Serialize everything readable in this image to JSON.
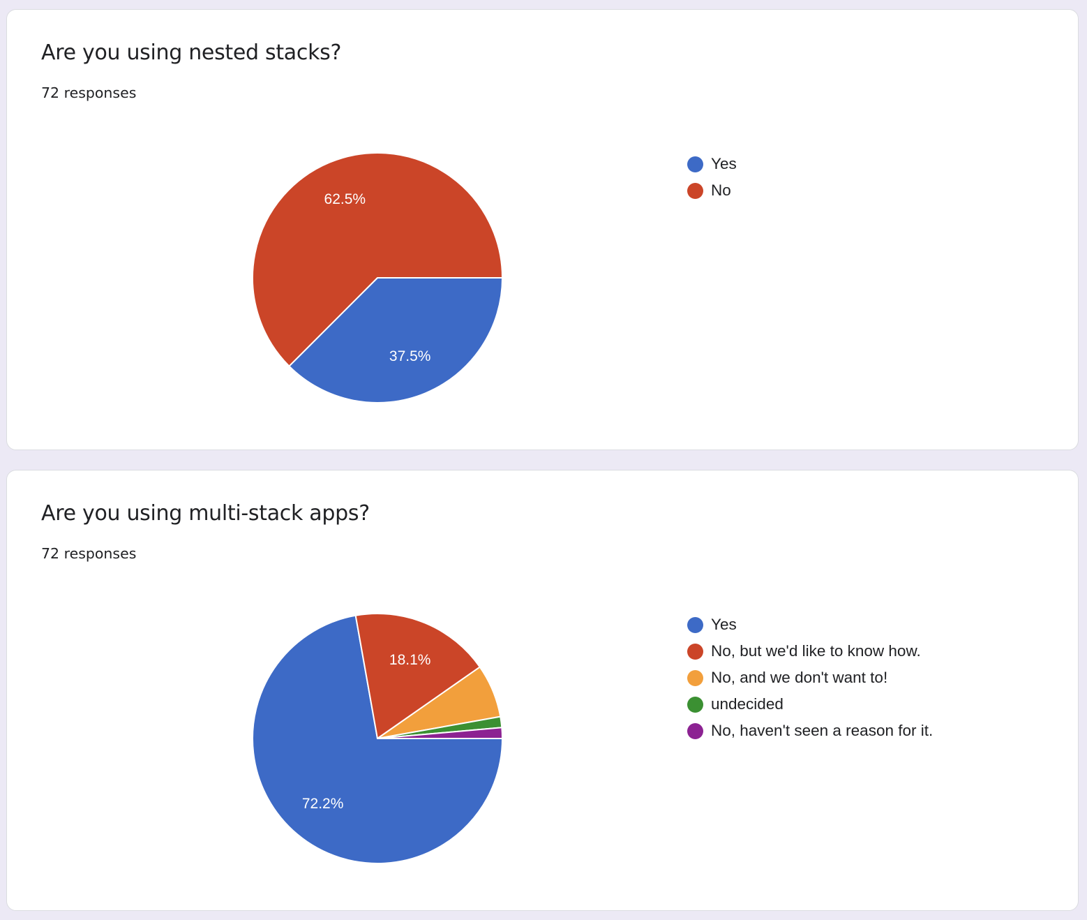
{
  "colors": {
    "blue": "#3d6ac6",
    "red": "#cb4528",
    "orange": "#f29f3c",
    "green": "#3b9032",
    "purple": "#8c2292",
    "background": "#ece9f5",
    "card": "#ffffff"
  },
  "cards": [
    {
      "title": "Are you using nested stacks?",
      "responses": "72 responses"
    },
    {
      "title": "Are you using multi-stack apps?",
      "responses": "72 responses"
    }
  ],
  "chart_data": [
    {
      "type": "pie",
      "title": "Are you using nested stacks?",
      "subtitle": "72 responses",
      "legend_position": "right",
      "categories": [
        "Yes",
        "No"
      ],
      "values": [
        37.5,
        62.5
      ],
      "labels": [
        "37.5%",
        "62.5%"
      ],
      "colors": [
        "#3d6ac6",
        "#cb4528"
      ]
    },
    {
      "type": "pie",
      "title": "Are you using multi-stack apps?",
      "subtitle": "72 responses",
      "legend_position": "right",
      "categories": [
        "Yes",
        "No, but we'd like to know how.",
        "No, and we don't want to!",
        "undecided",
        "No, haven't seen a reason for it."
      ],
      "values": [
        72.2,
        18.1,
        6.9,
        1.4,
        1.4
      ],
      "labels": [
        "72.2%",
        "18.1%",
        "",
        "",
        ""
      ],
      "colors": [
        "#3d6ac6",
        "#cb4528",
        "#f29f3c",
        "#3b9032",
        "#8c2292"
      ]
    }
  ]
}
